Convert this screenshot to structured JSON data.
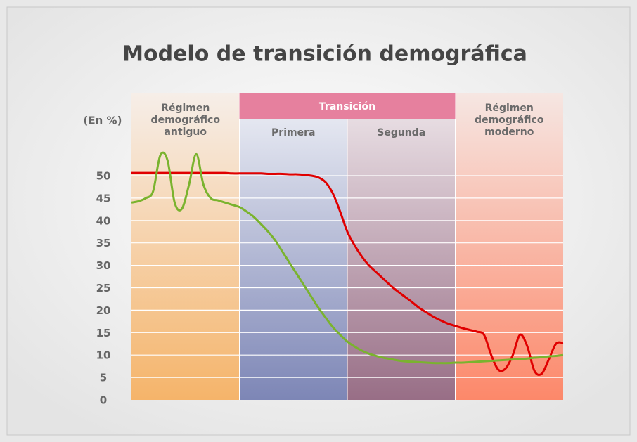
{
  "chart_data": {
    "type": "line",
    "title": "Modelo de transición demográfica",
    "y_label": "(En %)",
    "regions": [
      {
        "label": "Régimen demográfico antiguo"
      },
      {
        "label": "Primera"
      },
      {
        "label": "Segunda"
      },
      {
        "label": "Régimen demográfico moderno"
      }
    ],
    "region_group_label": "Transición",
    "categories": [
      null,
      null,
      null,
      null,
      null,
      null,
      null,
      null,
      null,
      null,
      null,
      null,
      null,
      null,
      null,
      null,
      null,
      null,
      null,
      null,
      null,
      null,
      null,
      null,
      null,
      null,
      null,
      null,
      null,
      null,
      null,
      null,
      null,
      null,
      null,
      null,
      null,
      null,
      null,
      null,
      null,
      null,
      null,
      null,
      null,
      null,
      null,
      null,
      null,
      null,
      null,
      null,
      null,
      null,
      null,
      null,
      null,
      null,
      null,
      null,
      null
    ],
    "series": [
      {
        "color": "#e00000",
        "values": [
          50.6,
          50.6,
          50.6,
          50.6,
          50.6,
          50.6,
          50.6,
          50.6,
          50.6,
          50.6,
          50.6,
          50.6,
          50.6,
          50.6,
          50.5,
          50.5,
          50.5,
          50.5,
          50.5,
          50.4,
          50.4,
          50.4,
          50.3,
          50.3,
          50.2,
          50,
          49.6,
          48.5,
          46,
          42,
          37.5,
          34.5,
          32,
          30,
          28.5,
          27,
          25.5,
          24.2,
          23,
          21.8,
          20.5,
          19.5,
          18.5,
          17.7,
          17,
          16.5,
          16,
          15.6,
          15.2,
          14.5,
          10,
          6.7,
          7,
          10,
          14.5,
          12,
          6.5,
          5.8,
          9,
          12.5,
          12.7
        ]
      },
      {
        "color": "#7ab32e",
        "values": [
          44,
          44.3,
          45,
          46.5,
          54.5,
          53.5,
          44,
          42.6,
          48,
          54.8,
          48,
          45,
          44.5,
          44,
          43.5,
          43,
          42,
          40.8,
          39.2,
          37.5,
          35.5,
          33,
          30.5,
          28,
          25.5,
          23,
          20.5,
          18.3,
          16.2,
          14.5,
          13,
          11.9,
          11,
          10.3,
          9.8,
          9.4,
          9.1,
          8.8,
          8.6,
          8.5,
          8.4,
          8.3,
          8.2,
          8.2,
          8.2,
          8.3,
          8.3,
          8.4,
          8.5,
          8.6,
          8.7,
          8.8,
          8.9,
          9,
          9.1,
          9.2,
          9.4,
          9.5,
          9.7,
          9.8,
          10
        ]
      }
    ],
    "ylim": [
      0,
      50
    ],
    "yticks": [
      0,
      5,
      10,
      15,
      20,
      25,
      30,
      35,
      40,
      45,
      50
    ],
    "grid": true
  }
}
